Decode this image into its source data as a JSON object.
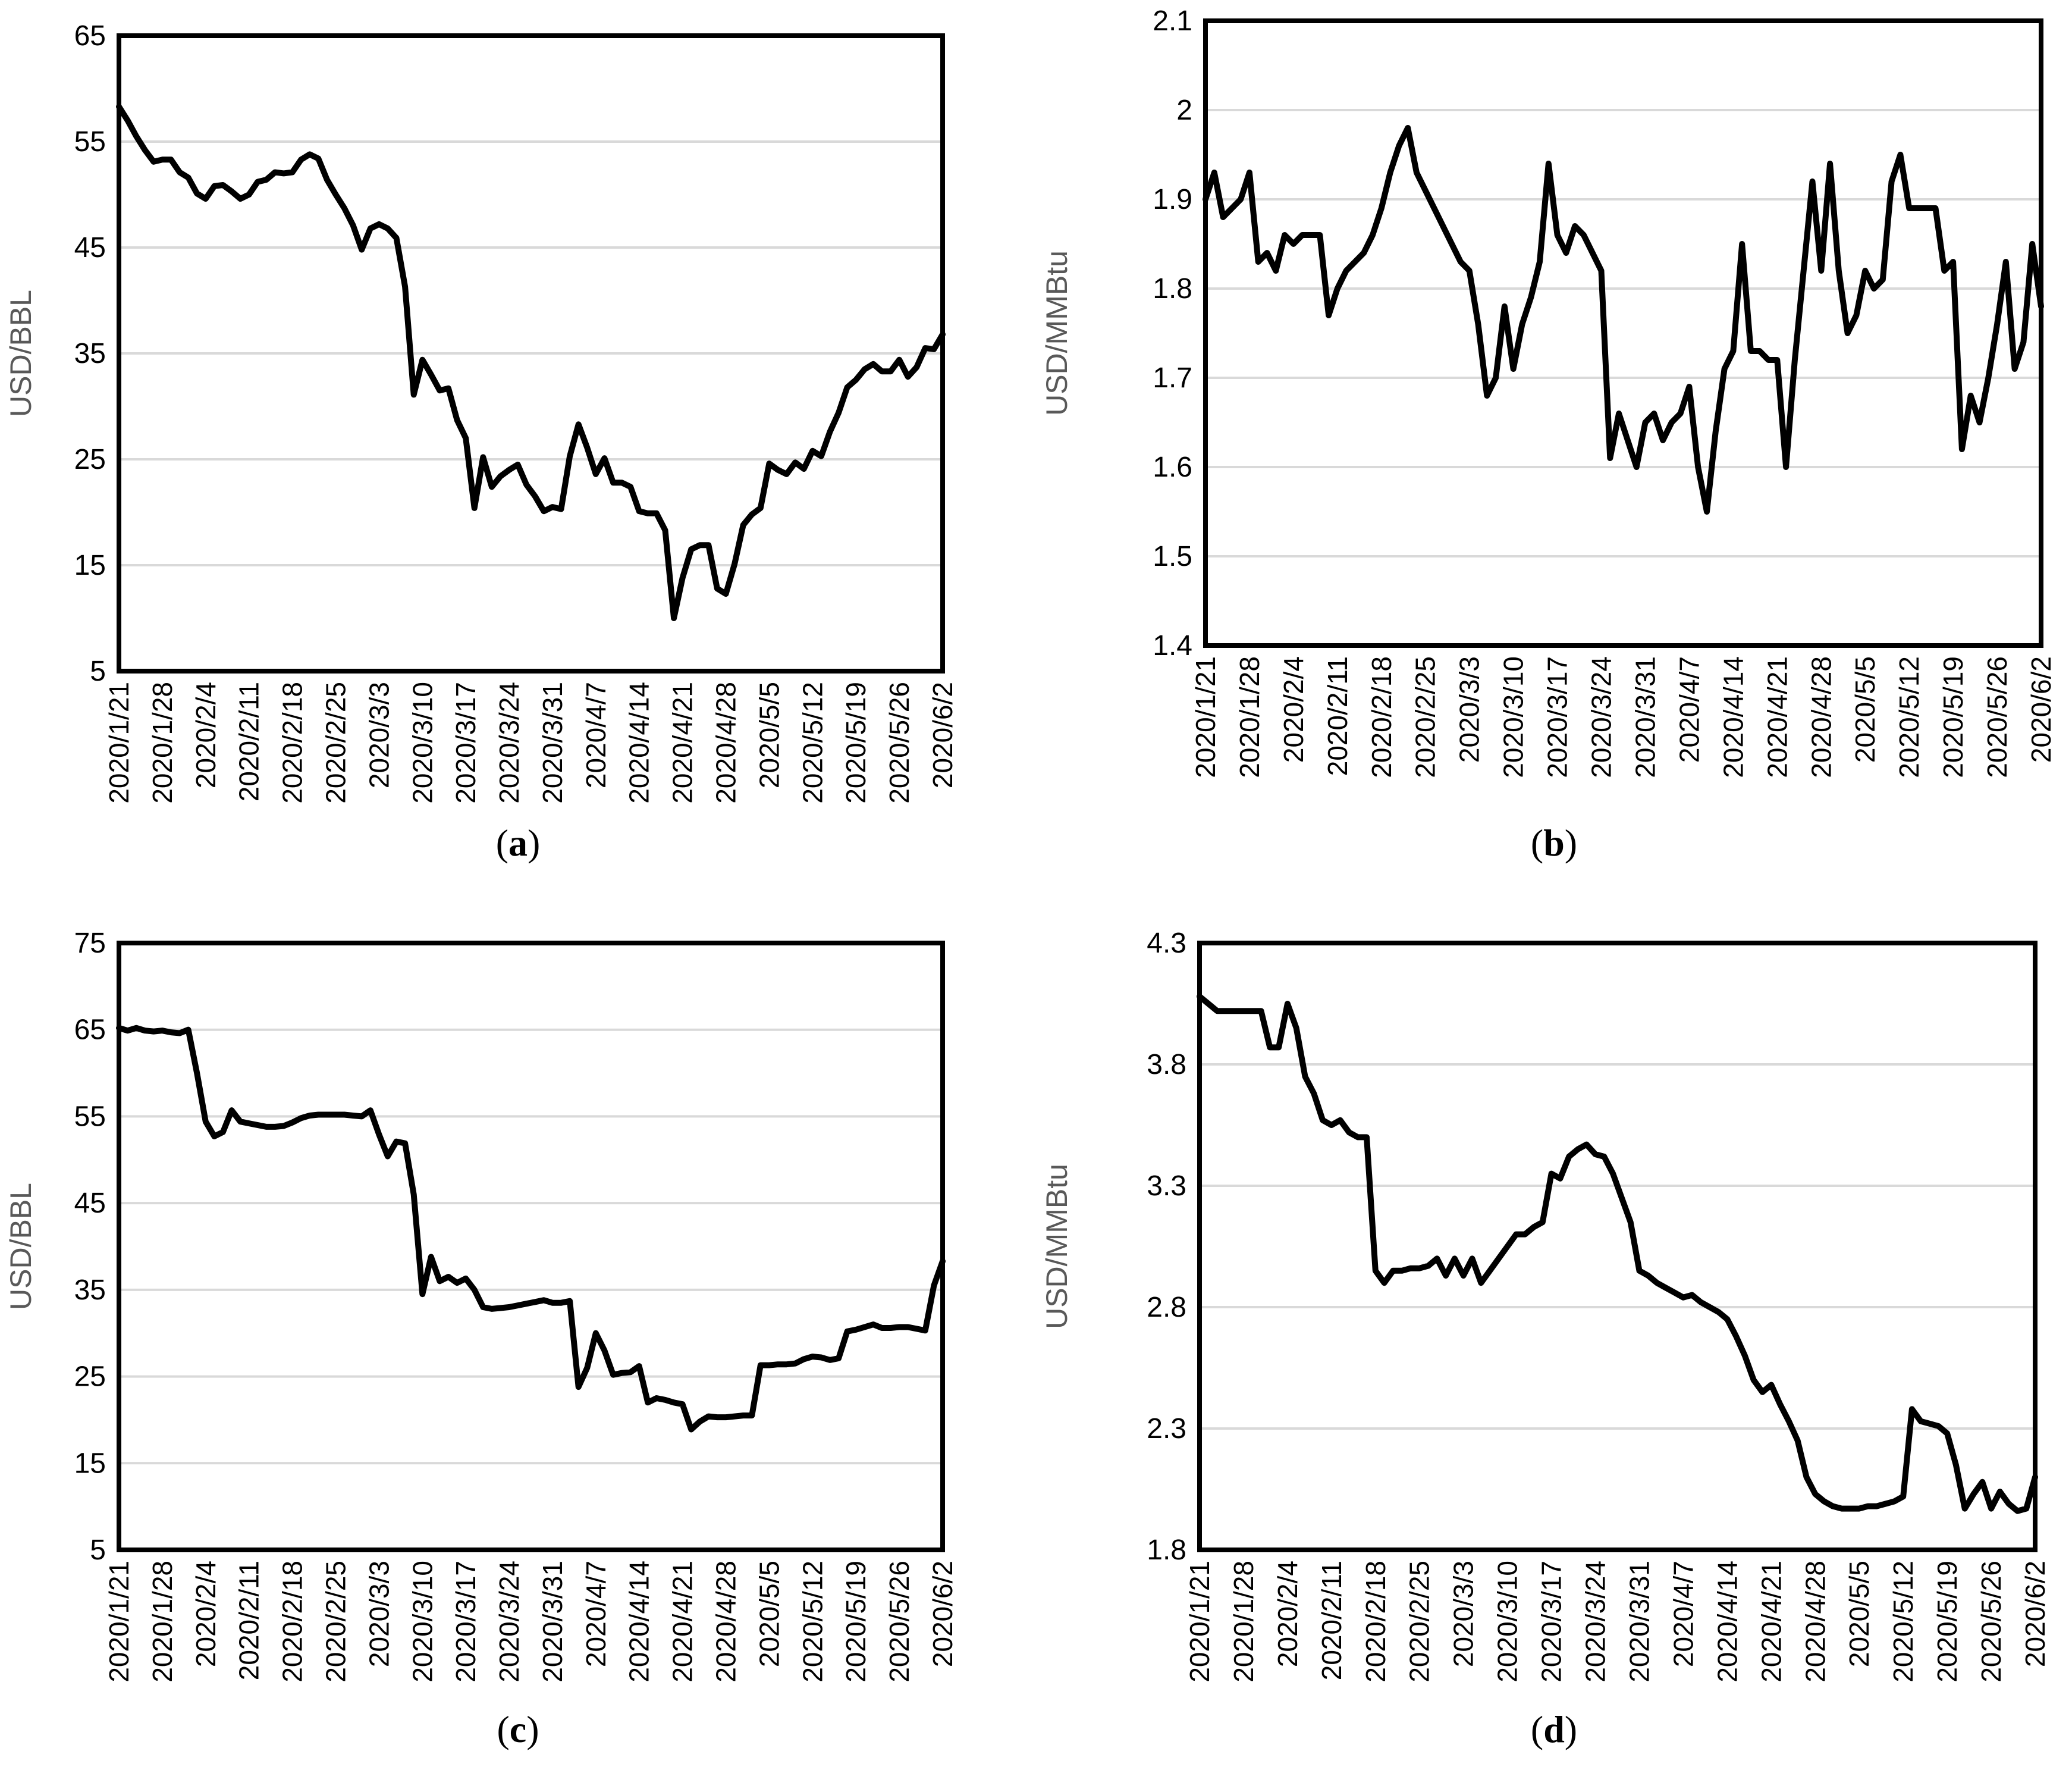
{
  "figure": {
    "background": "#ffffff",
    "colors": {
      "line": "#000000",
      "grid": "#d9d9d9",
      "axis": "#000000",
      "axis_title": "#595959",
      "tick_text": "#000000"
    }
  },
  "chart_data": [
    {
      "type": "line",
      "caption_open": "(",
      "caption_letter": "a",
      "caption_close": ")",
      "ylabel": "USD/BBL",
      "ylim": [
        5,
        65
      ],
      "yticks": [
        5,
        15,
        25,
        35,
        45,
        55,
        65
      ],
      "ytick_labels": [
        "5",
        "15",
        "25",
        "35",
        "45",
        "55",
        "65"
      ],
      "grid": "horizontal",
      "legend": "none",
      "x_tick_labels": [
        "2020/1/21",
        "2020/1/28",
        "2020/2/4",
        "2020/2/11",
        "2020/2/18",
        "2020/2/25",
        "2020/3/3",
        "2020/3/10",
        "2020/3/17",
        "2020/3/24",
        "2020/3/31",
        "2020/4/7",
        "2020/4/14",
        "2020/4/21",
        "2020/4/28",
        "2020/5/5",
        "2020/5/12",
        "2020/5/19",
        "2020/5/26",
        "2020/6/2"
      ],
      "x": [
        "2020/1/21",
        "2020/1/22",
        "2020/1/23",
        "2020/1/24",
        "2020/1/27",
        "2020/1/28",
        "2020/1/29",
        "2020/1/30",
        "2020/1/31",
        "2020/2/3",
        "2020/2/4",
        "2020/2/5",
        "2020/2/6",
        "2020/2/7",
        "2020/2/10",
        "2020/2/11",
        "2020/2/12",
        "2020/2/13",
        "2020/2/14",
        "2020/2/17",
        "2020/2/18",
        "2020/2/19",
        "2020/2/20",
        "2020/2/21",
        "2020/2/24",
        "2020/2/25",
        "2020/2/26",
        "2020/2/27",
        "2020/2/28",
        "2020/3/2",
        "2020/3/3",
        "2020/3/4",
        "2020/3/5",
        "2020/3/6",
        "2020/3/9",
        "2020/3/10",
        "2020/3/11",
        "2020/3/12",
        "2020/3/13",
        "2020/3/16",
        "2020/3/17",
        "2020/3/18",
        "2020/3/19",
        "2020/3/20",
        "2020/3/23",
        "2020/3/24",
        "2020/3/25",
        "2020/3/26",
        "2020/3/27",
        "2020/3/30",
        "2020/3/31",
        "2020/4/1",
        "2020/4/2",
        "2020/4/3",
        "2020/4/6",
        "2020/4/7",
        "2020/4/8",
        "2020/4/9",
        "2020/4/10",
        "2020/4/13",
        "2020/4/14",
        "2020/4/15",
        "2020/4/16",
        "2020/4/17",
        "2020/4/20",
        "2020/4/21",
        "2020/4/22",
        "2020/4/23",
        "2020/4/24",
        "2020/4/27",
        "2020/4/28",
        "2020/4/29",
        "2020/4/30",
        "2020/5/1",
        "2020/5/4",
        "2020/5/5",
        "2020/5/6",
        "2020/5/7",
        "2020/5/8",
        "2020/5/11",
        "2020/5/12",
        "2020/5/13",
        "2020/5/14",
        "2020/5/15",
        "2020/5/18",
        "2020/5/19",
        "2020/5/20",
        "2020/5/21",
        "2020/5/22",
        "2020/5/25",
        "2020/5/26",
        "2020/5/27",
        "2020/5/28",
        "2020/5/29",
        "2020/6/1",
        "2020/6/2"
      ],
      "values": [
        58.3,
        57.0,
        55.5,
        54.2,
        53.1,
        53.3,
        53.3,
        52.1,
        51.6,
        50.1,
        49.6,
        50.8,
        50.9,
        50.3,
        49.6,
        50.0,
        51.2,
        51.4,
        52.1,
        52.0,
        52.1,
        53.3,
        53.8,
        53.4,
        51.4,
        50.0,
        48.7,
        47.1,
        44.8,
        46.8,
        47.2,
        46.8,
        45.9,
        41.3,
        31.1,
        34.4,
        33.0,
        31.5,
        31.7,
        28.7,
        27.0,
        20.4,
        25.2,
        22.4,
        23.4,
        24.0,
        24.5,
        22.6,
        21.5,
        20.1,
        20.5,
        20.3,
        25.3,
        28.3,
        26.1,
        23.6,
        25.1,
        22.8,
        22.8,
        22.4,
        20.1,
        19.9,
        19.9,
        18.3,
        10.0,
        13.8,
        16.5,
        16.9,
        16.9,
        12.8,
        12.3,
        15.1,
        18.8,
        19.8,
        20.4,
        24.6,
        24.0,
        23.6,
        24.7,
        24.1,
        25.8,
        25.3,
        27.6,
        29.4,
        31.8,
        32.5,
        33.5,
        34.0,
        33.3,
        33.3,
        34.4,
        32.8,
        33.7,
        35.5,
        35.4,
        36.8
      ]
    },
    {
      "type": "line",
      "caption_open": "(",
      "caption_letter": "b",
      "caption_close": ")",
      "ylabel": "USD/MMBtu",
      "ylim": [
        1.4,
        2.1
      ],
      "yticks": [
        1.4,
        1.5,
        1.6,
        1.7,
        1.8,
        1.9,
        2.0,
        2.1
      ],
      "ytick_labels": [
        "1.4",
        "1.5",
        "1.6",
        "1.7",
        "1.8",
        "1.9",
        "2",
        "2.1"
      ],
      "grid": "horizontal",
      "legend": "none",
      "x_tick_labels": [
        "2020/1/21",
        "2020/1/28",
        "2020/2/4",
        "2020/2/11",
        "2020/2/18",
        "2020/2/25",
        "2020/3/3",
        "2020/3/10",
        "2020/3/17",
        "2020/3/24",
        "2020/3/31",
        "2020/4/7",
        "2020/4/14",
        "2020/4/21",
        "2020/4/28",
        "2020/5/5",
        "2020/5/12",
        "2020/5/19",
        "2020/5/26",
        "2020/6/2"
      ],
      "x": [
        "2020/1/21",
        "2020/1/22",
        "2020/1/23",
        "2020/1/24",
        "2020/1/27",
        "2020/1/28",
        "2020/1/29",
        "2020/1/30",
        "2020/1/31",
        "2020/2/3",
        "2020/2/4",
        "2020/2/5",
        "2020/2/6",
        "2020/2/7",
        "2020/2/10",
        "2020/2/11",
        "2020/2/12",
        "2020/2/13",
        "2020/2/14",
        "2020/2/17",
        "2020/2/18",
        "2020/2/19",
        "2020/2/20",
        "2020/2/21",
        "2020/2/24",
        "2020/2/25",
        "2020/2/26",
        "2020/2/27",
        "2020/2/28",
        "2020/3/2",
        "2020/3/3",
        "2020/3/4",
        "2020/3/5",
        "2020/3/6",
        "2020/3/9",
        "2020/3/10",
        "2020/3/11",
        "2020/3/12",
        "2020/3/13",
        "2020/3/16",
        "2020/3/17",
        "2020/3/18",
        "2020/3/19",
        "2020/3/20",
        "2020/3/23",
        "2020/3/24",
        "2020/3/25",
        "2020/3/26",
        "2020/3/27",
        "2020/3/30",
        "2020/3/31",
        "2020/4/1",
        "2020/4/2",
        "2020/4/3",
        "2020/4/6",
        "2020/4/7",
        "2020/4/8",
        "2020/4/9",
        "2020/4/10",
        "2020/4/13",
        "2020/4/14",
        "2020/4/15",
        "2020/4/16",
        "2020/4/17",
        "2020/4/20",
        "2020/4/21",
        "2020/4/22",
        "2020/4/23",
        "2020/4/24",
        "2020/4/27",
        "2020/4/28",
        "2020/4/29",
        "2020/4/30",
        "2020/5/1",
        "2020/5/4",
        "2020/5/5",
        "2020/5/6",
        "2020/5/7",
        "2020/5/8",
        "2020/5/11",
        "2020/5/12",
        "2020/5/13",
        "2020/5/14",
        "2020/5/15",
        "2020/5/18",
        "2020/5/19",
        "2020/5/20",
        "2020/5/21",
        "2020/5/22",
        "2020/5/25",
        "2020/5/26",
        "2020/5/27",
        "2020/5/28",
        "2020/5/29",
        "2020/6/1",
        "2020/6/2"
      ],
      "values": [
        1.9,
        1.93,
        1.88,
        1.89,
        1.9,
        1.93,
        1.83,
        1.84,
        1.82,
        1.86,
        1.85,
        1.86,
        1.86,
        1.86,
        1.77,
        1.8,
        1.82,
        1.83,
        1.84,
        1.86,
        1.89,
        1.93,
        1.96,
        1.98,
        1.93,
        1.91,
        1.89,
        1.87,
        1.85,
        1.83,
        1.82,
        1.76,
        1.68,
        1.7,
        1.78,
        1.71,
        1.76,
        1.79,
        1.83,
        1.94,
        1.86,
        1.84,
        1.87,
        1.86,
        1.84,
        1.82,
        1.61,
        1.66,
        1.63,
        1.6,
        1.65,
        1.66,
        1.63,
        1.65,
        1.66,
        1.69,
        1.6,
        1.55,
        1.64,
        1.71,
        1.73,
        1.85,
        1.73,
        1.73,
        1.72,
        1.72,
        1.6,
        1.72,
        1.82,
        1.92,
        1.82,
        1.94,
        1.82,
        1.75,
        1.77,
        1.82,
        1.8,
        1.81,
        1.92,
        1.95,
        1.89,
        1.89,
        1.89,
        1.89,
        1.82,
        1.83,
        1.62,
        1.68,
        1.65,
        1.7,
        1.76,
        1.83,
        1.71,
        1.74,
        1.85,
        1.78
      ]
    },
    {
      "type": "line",
      "caption_open": "(",
      "caption_letter": "c",
      "caption_close": ")",
      "ylabel": "USD/BBL",
      "ylim": [
        5,
        75
      ],
      "yticks": [
        5,
        15,
        25,
        35,
        45,
        55,
        65,
        75
      ],
      "ytick_labels": [
        "5",
        "15",
        "25",
        "35",
        "45",
        "55",
        "65",
        "75"
      ],
      "grid": "horizontal",
      "legend": "none",
      "x_tick_labels": [
        "2020/1/21",
        "2020/1/28",
        "2020/2/4",
        "2020/2/11",
        "2020/2/18",
        "2020/2/25",
        "2020/3/3",
        "2020/3/10",
        "2020/3/17",
        "2020/3/24",
        "2020/3/31",
        "2020/4/7",
        "2020/4/14",
        "2020/4/21",
        "2020/4/28",
        "2020/5/5",
        "2020/5/12",
        "2020/5/19",
        "2020/5/26",
        "2020/6/2"
      ],
      "x": [
        "2020/1/21",
        "2020/1/22",
        "2020/1/23",
        "2020/1/24",
        "2020/1/27",
        "2020/1/28",
        "2020/1/29",
        "2020/1/30",
        "2020/1/31",
        "2020/2/3",
        "2020/2/4",
        "2020/2/5",
        "2020/2/6",
        "2020/2/7",
        "2020/2/10",
        "2020/2/11",
        "2020/2/12",
        "2020/2/13",
        "2020/2/14",
        "2020/2/17",
        "2020/2/18",
        "2020/2/19",
        "2020/2/20",
        "2020/2/21",
        "2020/2/24",
        "2020/2/25",
        "2020/2/26",
        "2020/2/27",
        "2020/2/28",
        "2020/3/2",
        "2020/3/3",
        "2020/3/4",
        "2020/3/5",
        "2020/3/6",
        "2020/3/9",
        "2020/3/10",
        "2020/3/11",
        "2020/3/12",
        "2020/3/13",
        "2020/3/16",
        "2020/3/17",
        "2020/3/18",
        "2020/3/19",
        "2020/3/20",
        "2020/3/23",
        "2020/3/24",
        "2020/3/25",
        "2020/3/26",
        "2020/3/27",
        "2020/3/30",
        "2020/3/31",
        "2020/4/1",
        "2020/4/2",
        "2020/4/3",
        "2020/4/6",
        "2020/4/7",
        "2020/4/8",
        "2020/4/9",
        "2020/4/10",
        "2020/4/13",
        "2020/4/14",
        "2020/4/15",
        "2020/4/16",
        "2020/4/17",
        "2020/4/20",
        "2020/4/21",
        "2020/4/22",
        "2020/4/23",
        "2020/4/24",
        "2020/4/27",
        "2020/4/28",
        "2020/4/29",
        "2020/4/30",
        "2020/5/1",
        "2020/5/4",
        "2020/5/5",
        "2020/5/6",
        "2020/5/7",
        "2020/5/8",
        "2020/5/11",
        "2020/5/12",
        "2020/5/13",
        "2020/5/14",
        "2020/5/15",
        "2020/5/18",
        "2020/5/19",
        "2020/5/20",
        "2020/5/21",
        "2020/5/22",
        "2020/5/25",
        "2020/5/26",
        "2020/5/27",
        "2020/5/28",
        "2020/5/29",
        "2020/6/1",
        "2020/6/2"
      ],
      "values": [
        65.2,
        64.9,
        65.2,
        64.9,
        64.8,
        64.9,
        64.7,
        64.6,
        65.0,
        60.0,
        54.4,
        52.7,
        53.2,
        55.7,
        54.4,
        54.2,
        54.0,
        53.8,
        53.8,
        53.9,
        54.3,
        54.8,
        55.1,
        55.2,
        55.2,
        55.2,
        55.2,
        55.1,
        55.0,
        55.7,
        52.9,
        50.4,
        52.1,
        51.9,
        46.0,
        34.5,
        38.8,
        36.0,
        36.5,
        35.8,
        36.3,
        35.0,
        33.0,
        32.8,
        32.9,
        33.0,
        33.2,
        33.4,
        33.6,
        33.8,
        33.5,
        33.5,
        33.7,
        23.8,
        26.0,
        30.0,
        28.0,
        25.2,
        25.4,
        25.5,
        26.2,
        22.0,
        22.5,
        22.3,
        22.0,
        21.8,
        18.9,
        19.8,
        20.4,
        20.3,
        20.3,
        20.4,
        20.5,
        20.5,
        26.3,
        26.3,
        26.4,
        26.4,
        26.5,
        27.0,
        27.3,
        27.2,
        26.9,
        27.1,
        30.2,
        30.4,
        30.7,
        31.0,
        30.6,
        30.6,
        30.7,
        30.7,
        30.5,
        30.3,
        35.5,
        38.3
      ]
    },
    {
      "type": "line",
      "caption_open": "(",
      "caption_letter": "d",
      "caption_close": ")",
      "ylabel": "USD/MMBtu",
      "ylim": [
        1.8,
        4.3
      ],
      "yticks": [
        1.8,
        2.3,
        2.8,
        3.3,
        3.8,
        4.3
      ],
      "ytick_labels": [
        "1.8",
        "2.3",
        "2.8",
        "3.3",
        "3.8",
        "4.3"
      ],
      "grid": "horizontal",
      "legend": "none",
      "x_tick_labels": [
        "2020/1/21",
        "2020/1/28",
        "2020/2/4",
        "2020/2/11",
        "2020/2/18",
        "2020/2/25",
        "2020/3/3",
        "2020/3/10",
        "2020/3/17",
        "2020/3/24",
        "2020/3/31",
        "2020/4/7",
        "2020/4/14",
        "2020/4/21",
        "2020/4/28",
        "2020/5/5",
        "2020/5/12",
        "2020/5/19",
        "2020/5/26",
        "2020/6/2"
      ],
      "x": [
        "2020/1/21",
        "2020/1/22",
        "2020/1/23",
        "2020/1/24",
        "2020/1/27",
        "2020/1/28",
        "2020/1/29",
        "2020/1/30",
        "2020/1/31",
        "2020/2/3",
        "2020/2/4",
        "2020/2/5",
        "2020/2/6",
        "2020/2/7",
        "2020/2/10",
        "2020/2/11",
        "2020/2/12",
        "2020/2/13",
        "2020/2/14",
        "2020/2/17",
        "2020/2/18",
        "2020/2/19",
        "2020/2/20",
        "2020/2/21",
        "2020/2/24",
        "2020/2/25",
        "2020/2/26",
        "2020/2/27",
        "2020/2/28",
        "2020/3/2",
        "2020/3/3",
        "2020/3/4",
        "2020/3/5",
        "2020/3/6",
        "2020/3/9",
        "2020/3/10",
        "2020/3/11",
        "2020/3/12",
        "2020/3/13",
        "2020/3/16",
        "2020/3/17",
        "2020/3/18",
        "2020/3/19",
        "2020/3/20",
        "2020/3/23",
        "2020/3/24",
        "2020/3/25",
        "2020/3/26",
        "2020/3/27",
        "2020/3/30",
        "2020/3/31",
        "2020/4/1",
        "2020/4/2",
        "2020/4/3",
        "2020/4/6",
        "2020/4/7",
        "2020/4/8",
        "2020/4/9",
        "2020/4/10",
        "2020/4/13",
        "2020/4/14",
        "2020/4/15",
        "2020/4/16",
        "2020/4/17",
        "2020/4/20",
        "2020/4/21",
        "2020/4/22",
        "2020/4/23",
        "2020/4/24",
        "2020/4/27",
        "2020/4/28",
        "2020/4/29",
        "2020/4/30",
        "2020/5/1",
        "2020/5/4",
        "2020/5/5",
        "2020/5/6",
        "2020/5/7",
        "2020/5/8",
        "2020/5/11",
        "2020/5/12",
        "2020/5/13",
        "2020/5/14",
        "2020/5/15",
        "2020/5/18",
        "2020/5/19",
        "2020/5/20",
        "2020/5/21",
        "2020/5/22",
        "2020/5/25",
        "2020/5/26",
        "2020/5/27",
        "2020/5/28",
        "2020/5/29",
        "2020/6/1",
        "2020/6/2"
      ],
      "values": [
        4.08,
        4.05,
        4.02,
        4.02,
        4.02,
        4.02,
        4.02,
        4.02,
        3.87,
        3.87,
        4.05,
        3.95,
        3.75,
        3.68,
        3.57,
        3.55,
        3.57,
        3.52,
        3.5,
        3.5,
        2.95,
        2.9,
        2.95,
        2.95,
        2.96,
        2.96,
        2.97,
        3.0,
        2.93,
        3.0,
        2.93,
        3.0,
        2.9,
        2.95,
        3.0,
        3.05,
        3.1,
        3.1,
        3.13,
        3.15,
        3.35,
        3.33,
        3.42,
        3.45,
        3.47,
        3.43,
        3.42,
        3.35,
        3.25,
        3.15,
        2.95,
        2.93,
        2.9,
        2.88,
        2.86,
        2.84,
        2.85,
        2.82,
        2.8,
        2.78,
        2.75,
        2.68,
        2.6,
        2.5,
        2.45,
        2.48,
        2.4,
        2.33,
        2.25,
        2.1,
        2.03,
        2.0,
        1.98,
        1.97,
        1.97,
        1.97,
        1.98,
        1.98,
        1.99,
        2.0,
        2.02,
        2.38,
        2.33,
        2.32,
        2.31,
        2.28,
        2.15,
        1.97,
        2.03,
        2.08,
        1.97,
        2.04,
        1.99,
        1.96,
        1.97,
        2.1
      ]
    }
  ]
}
